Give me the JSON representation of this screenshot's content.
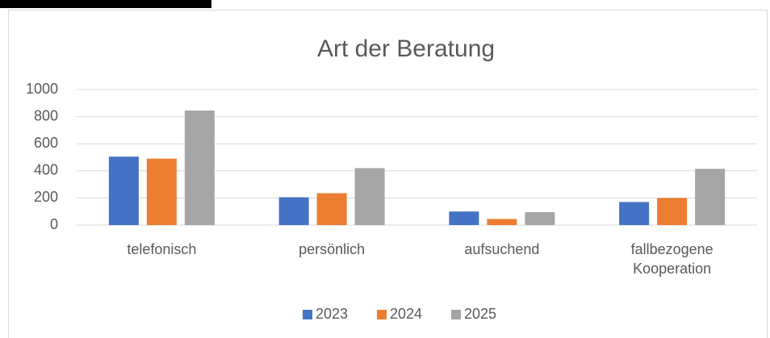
{
  "chart_data": {
    "type": "bar",
    "title": "Art der Beratung",
    "categories": [
      "telefonisch",
      "persönlich",
      "aufsuchend",
      "fallbezogene Kooperation"
    ],
    "series": [
      {
        "name": "2023",
        "color": "#4472c4",
        "values": [
          505,
          205,
          100,
          170
        ]
      },
      {
        "name": "2024",
        "color": "#ed7d31",
        "values": [
          490,
          235,
          45,
          200
        ]
      },
      {
        "name": "2025",
        "color": "#a5a5a5",
        "values": [
          845,
          420,
          95,
          415
        ]
      }
    ],
    "ylim": [
      0,
      1000
    ],
    "yticks": [
      0,
      200,
      400,
      600,
      800,
      1000
    ],
    "grid": true,
    "legend": "bottom"
  }
}
